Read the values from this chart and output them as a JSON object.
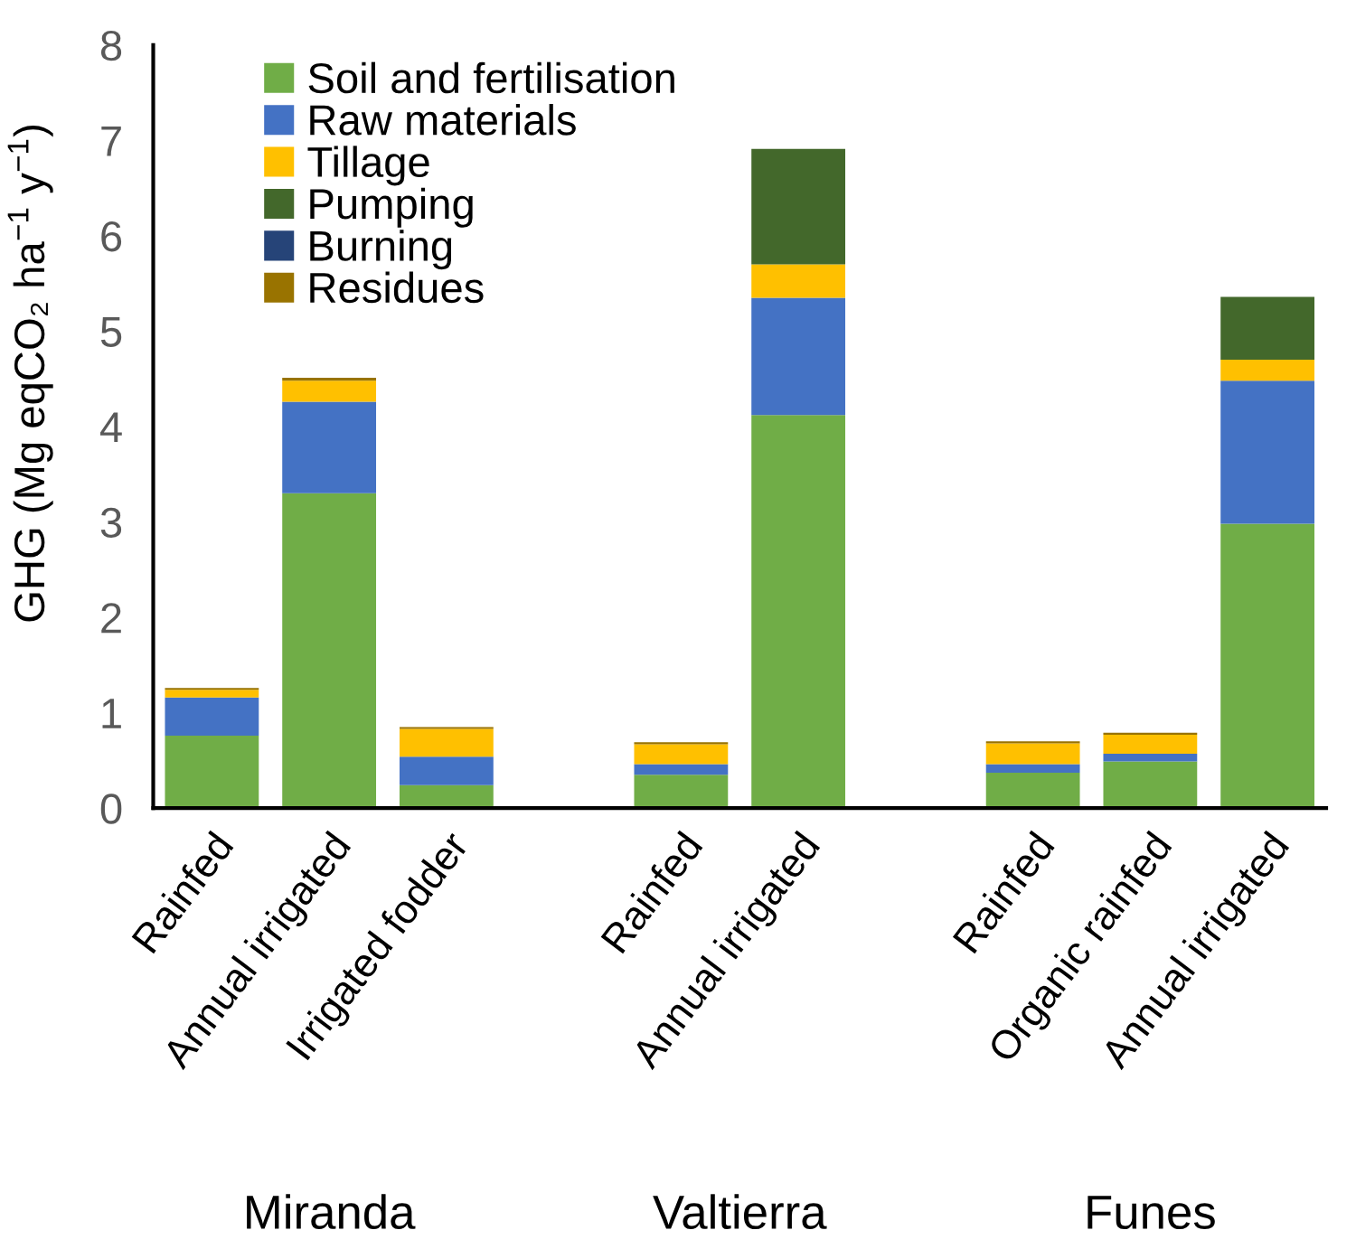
{
  "chart_data": {
    "type": "bar",
    "stacked": true,
    "ylabel": "GHG (Mg eqCO₂ ha$^{−1}$ y$^{−1}$)",
    "categories": [
      "Rainfed",
      "Annual irrigated",
      "Irrigated fodder",
      null,
      "Rainfed",
      "Annual irrigated",
      null,
      "Rainfed",
      "Organic rainfed",
      "Annual irrigated"
    ],
    "series": [
      {
        "name": "Soil and fertilisation",
        "color": "#70ad47",
        "values": [
          0.76,
          3.3,
          0.24,
          null,
          0.35,
          4.12,
          null,
          0.37,
          0.49,
          2.98
        ]
      },
      {
        "name": "Raw materials",
        "color": "#4472c4",
        "values": [
          0.4,
          0.96,
          0.3,
          null,
          0.11,
          1.23,
          null,
          0.09,
          0.08,
          1.5
        ]
      },
      {
        "name": "Tillage",
        "color": "#ffc000",
        "values": [
          0.08,
          0.22,
          0.29,
          null,
          0.21,
          0.35,
          null,
          0.22,
          0.2,
          0.22
        ]
      },
      {
        "name": "Pumping",
        "color": "#43682b",
        "values": [
          0,
          0,
          0,
          null,
          0,
          1.21,
          null,
          0,
          0,
          0.66
        ]
      },
      {
        "name": "Burning",
        "color": "#264478",
        "values": [
          0,
          0,
          0,
          null,
          0,
          0,
          null,
          0,
          0,
          0
        ]
      },
      {
        "name": "Residues",
        "color": "#997300",
        "values": [
          0.02,
          0.03,
          0.02,
          null,
          0.02,
          0,
          null,
          0.02,
          0.02,
          0
        ]
      }
    ],
    "ylim": [
      0,
      8
    ],
    "yticks": [
      0,
      1,
      2,
      3,
      4,
      5,
      6,
      7,
      8
    ],
    "legend": "top left",
    "grid": false,
    "annotations": [
      "Miranda",
      "Valtierra",
      "Funes"
    ]
  }
}
